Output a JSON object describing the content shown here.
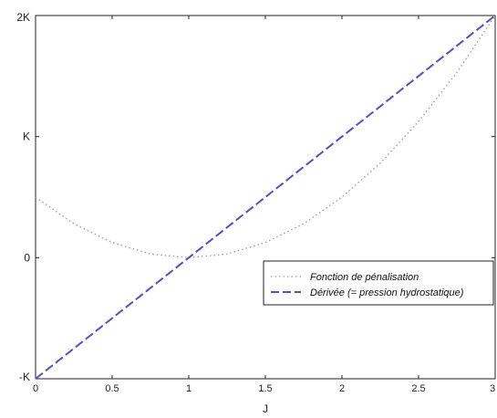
{
  "chart_data": {
    "type": "line",
    "title": "",
    "xlabel": "J",
    "ylabel": "",
    "xlim": [
      0,
      3
    ],
    "ylim": [
      -1,
      2
    ],
    "x_ticks": [
      {
        "value": 0,
        "label": "0"
      },
      {
        "value": 0.5,
        "label": "0.5"
      },
      {
        "value": 1,
        "label": "1"
      },
      {
        "value": 1.5,
        "label": "1.5"
      },
      {
        "value": 2,
        "label": "2"
      },
      {
        "value": 2.5,
        "label": "2.5"
      },
      {
        "value": 3,
        "label": "3"
      }
    ],
    "y_ticks": [
      {
        "value": -1,
        "label": "-K"
      },
      {
        "value": 0,
        "label": "0"
      },
      {
        "value": 1,
        "label": "K"
      },
      {
        "value": 2,
        "label": "2K"
      }
    ],
    "grid": false,
    "legend_position": "right",
    "series": [
      {
        "name": "Fonction de pénalisation",
        "style": "dotted",
        "color": "#9a9ae0",
        "x": [
          0,
          0.25,
          0.5,
          0.75,
          1,
          1.25,
          1.5,
          1.75,
          2,
          2.25,
          2.5,
          2.75,
          3
        ],
        "y": [
          0.5,
          0.28,
          0.125,
          0.03,
          0,
          0.03,
          0.125,
          0.28,
          0.5,
          0.78,
          1.125,
          1.53,
          2
        ]
      },
      {
        "name": "Dérivée (= pression hydrostatique)",
        "style": "dashed",
        "color": "#5050c8",
        "x": [
          0,
          0.5,
          1,
          1.5,
          2,
          2.5,
          3
        ],
        "y": [
          -1,
          -0.5,
          0,
          0.5,
          1,
          1.5,
          2
        ]
      }
    ]
  }
}
